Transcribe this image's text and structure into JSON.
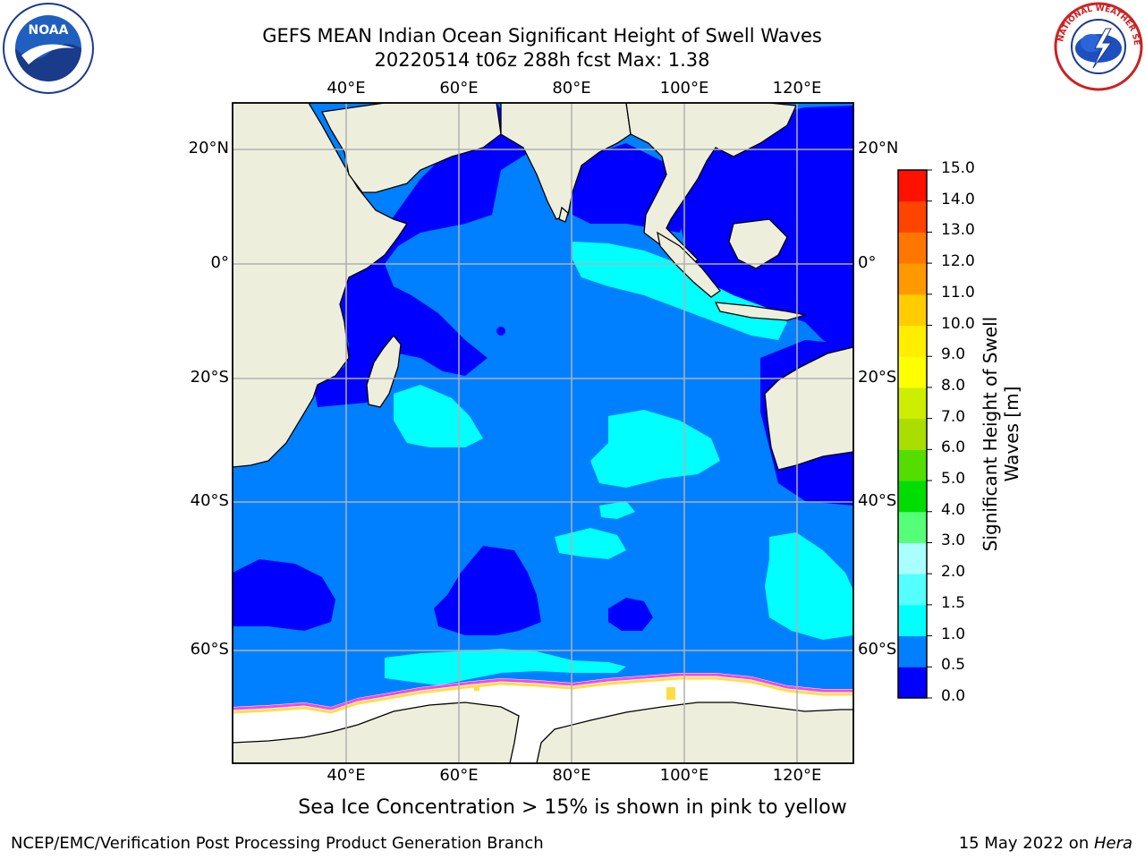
{
  "header": {
    "title_line1": "GEFS MEAN Indian Ocean Significant Height of Swell Waves",
    "title_line2": "20220514 t06z 288h fcst   Max: 1.38"
  },
  "logos": {
    "noaa_text": "NOAA",
    "noaa_ring_text": "NATIONAL OCEANIC AND ATMOSPHERIC ADMINISTRATION · U.S. DEPARTMENT OF COMMERCE",
    "nws_ring_text": "NATIONAL WEATHER SERVICE"
  },
  "map": {
    "lon_labels": [
      "40°E",
      "60°E",
      "80°E",
      "100°E",
      "120°E"
    ],
    "lat_labels": [
      "20°N",
      "0°",
      "20°S",
      "40°S",
      "60°S"
    ],
    "colors": {
      "land": "#eeeedd",
      "ocean_main": "#0080ff",
      "ocean_low": "#0000ff",
      "ocean_high": "#00ffff",
      "sea_ice": "#ffffff",
      "ice_edge_pink": "#ff44dd",
      "ice_edge_yellow": "#ffdd44",
      "grid": "#b0b0b0"
    }
  },
  "colorbar": {
    "label_line1": "Significant Height of Swell",
    "label_line2": "Waves [m]",
    "ticks": [
      "0.0",
      "0.5",
      "1.0",
      "1.5",
      "2.0",
      "3.0",
      "4.0",
      "5.0",
      "6.0",
      "7.0",
      "8.0",
      "9.0",
      "10.0",
      "11.0",
      "12.0",
      "13.0",
      "14.0",
      "15.0"
    ],
    "colors": [
      "#0000ff",
      "#0080ff",
      "#00ffff",
      "#55ffff",
      "#aaffff",
      "#55ff77",
      "#00dd00",
      "#55dd00",
      "#aadd00",
      "#ccee00",
      "#ffff00",
      "#ffee00",
      "#ffcc00",
      "#ff9900",
      "#ff7700",
      "#ff4400",
      "#ff1100"
    ]
  },
  "caption": "Sea Ice Concentration > 15% is shown in pink to yellow",
  "footer": {
    "left": "NCEP/EMC/Verification Post Processing Product Generation Branch",
    "right_prefix": "15 May 2022 on ",
    "right_host": "Hera"
  }
}
